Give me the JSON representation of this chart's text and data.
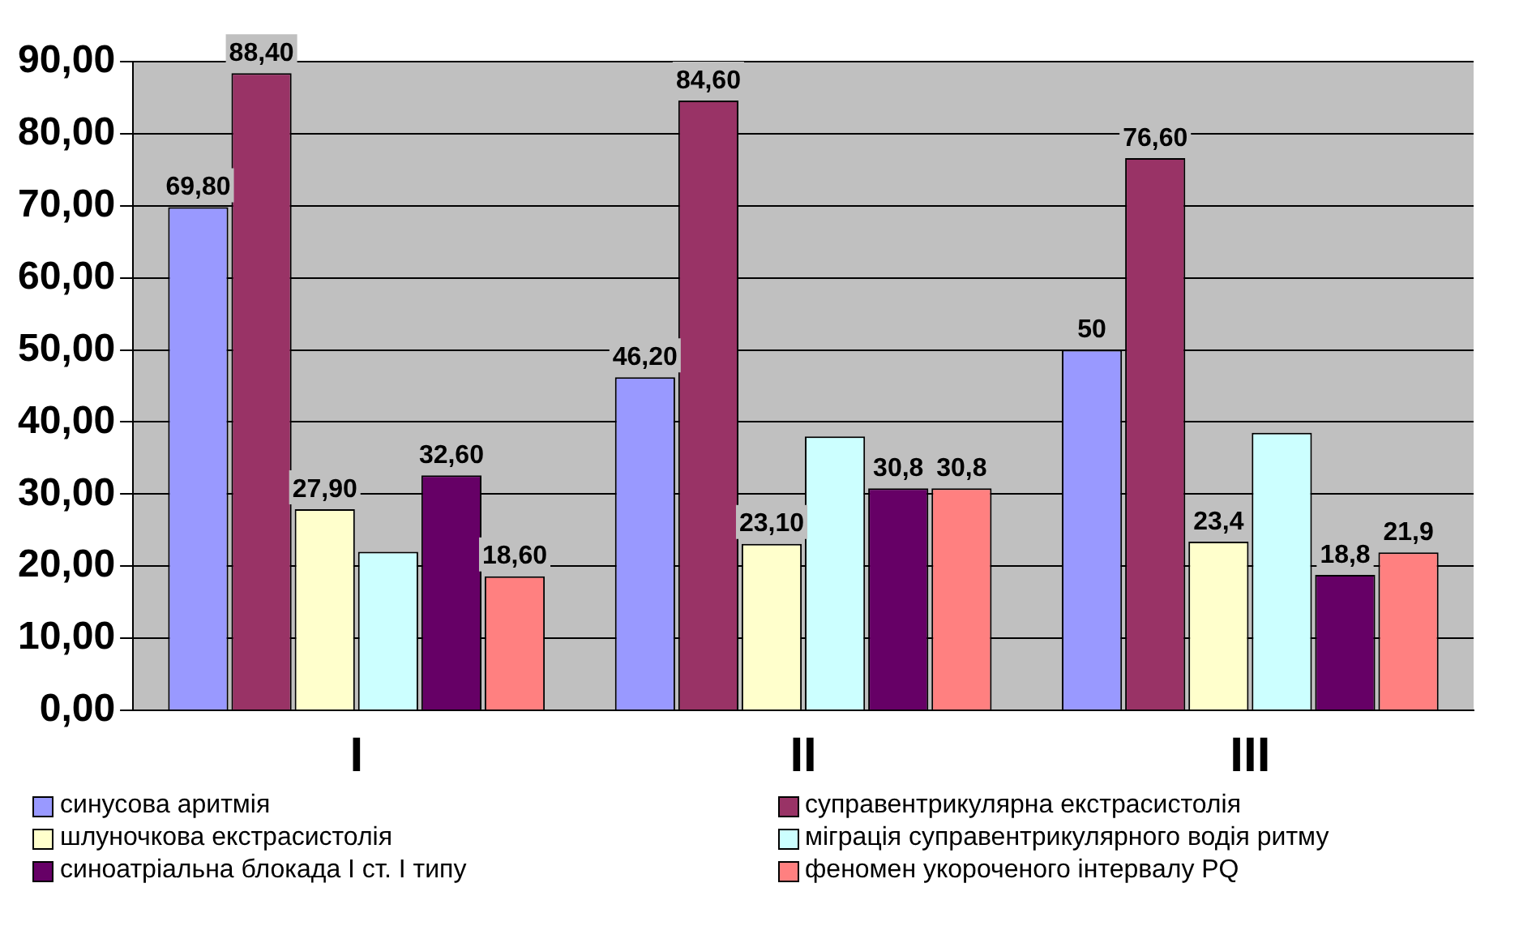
{
  "chart_data": {
    "type": "bar",
    "categories": [
      "I",
      "II",
      "III"
    ],
    "series": [
      {
        "name": "синусова аритмія",
        "color": "#9999ff",
        "values": [
          69.8,
          46.2,
          50
        ],
        "value_labels": [
          "69,80",
          "46,20",
          "50"
        ]
      },
      {
        "name": "суправентрикулярна екстрасистолія",
        "color": "#993366",
        "values": [
          88.4,
          84.6,
          76.6
        ],
        "value_labels": [
          "88,40",
          "84,60",
          "76,60"
        ]
      },
      {
        "name": "шлуночкова екстрасистолія",
        "color": "#ffffcc",
        "values": [
          27.9,
          23.1,
          23.4
        ],
        "value_labels": [
          "27,90",
          "23,10",
          "23,4"
        ]
      },
      {
        "name": "міграція суправентрикулярного водія ритму",
        "color": "#ccffff",
        "values": [
          22,
          38,
          38.5
        ]
      },
      {
        "name": "синоатріальна блокада І ст. І типу",
        "color": "#660066",
        "values": [
          32.6,
          30.8,
          18.8
        ],
        "value_labels": [
          "32,60",
          "30,8",
          "18,8"
        ]
      },
      {
        "name": "феномен укороченого інтервалу PQ",
        "color": "#ff8080",
        "values": [
          18.6,
          30.8,
          21.9
        ],
        "value_labels": [
          "18,60",
          "30,8",
          "21,9"
        ]
      }
    ],
    "ylim": [
      0,
      90
    ],
    "yticks": [
      {
        "value": 0,
        "label": "0,00"
      },
      {
        "value": 10,
        "label": "10,00"
      },
      {
        "value": 20,
        "label": "20,00"
      },
      {
        "value": 30,
        "label": "30,00"
      },
      {
        "value": 40,
        "label": "40,00"
      },
      {
        "value": 50,
        "label": "50,00"
      },
      {
        "value": 60,
        "label": "60,00"
      },
      {
        "value": 70,
        "label": "70,00"
      },
      {
        "value": 80,
        "label": "80,00"
      },
      {
        "value": 90,
        "label": "90,00"
      }
    ],
    "grid": "y",
    "legend": "bottom"
  }
}
